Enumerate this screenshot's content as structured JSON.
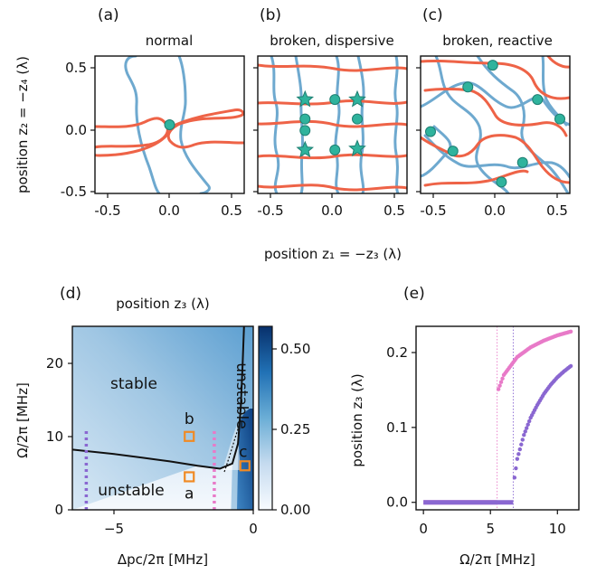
{
  "chart_data": [
    {
      "panel": "(a)",
      "type": "line",
      "title": "normal",
      "xticks": [
        "-0.5",
        "0.0",
        "0.5"
      ],
      "yticks": [
        "0.5",
        "0.0",
        "-0.5"
      ],
      "xlim": [
        -0.6,
        0.6
      ],
      "ylim": [
        -0.6,
        0.6
      ],
      "ylabel": "position z₂ = −z₄ (λ)",
      "points": [
        {
          "x": 0.0,
          "y": 0.0
        }
      ]
    },
    {
      "panel": "(b)",
      "type": "line",
      "title": "broken, dispersive",
      "xticks": [
        "-0.5",
        "0.0",
        "0.5"
      ],
      "xlim": [
        -0.6,
        0.6
      ],
      "ylim": [
        -0.6,
        0.6
      ],
      "xlabel": "position z₁ = −z₃ (λ)",
      "star_points": [
        {
          "x": -0.22,
          "y": 0.22
        },
        {
          "x": 0.2,
          "y": 0.22
        },
        {
          "x": -0.22,
          "y": -0.22
        },
        {
          "x": 0.2,
          "y": -0.21
        }
      ],
      "points": [
        {
          "x": 0.02,
          "y": 0.22
        },
        {
          "x": -0.22,
          "y": 0.05
        },
        {
          "x": 0.2,
          "y": 0.05
        },
        {
          "x": -0.22,
          "y": -0.05
        },
        {
          "x": 0.02,
          "y": -0.22
        }
      ]
    },
    {
      "panel": "(c)",
      "type": "line",
      "title": "broken, reactive",
      "xticks": [
        "-0.5",
        "0.0",
        "0.5"
      ],
      "xlim": [
        -0.6,
        0.6
      ],
      "ylim": [
        -0.6,
        0.6
      ],
      "points": [
        {
          "x": -0.02,
          "y": 0.52
        },
        {
          "x": -0.22,
          "y": 0.33
        },
        {
          "x": 0.34,
          "y": 0.22
        },
        {
          "x": 0.52,
          "y": 0.05
        },
        {
          "x": -0.52,
          "y": -0.06
        },
        {
          "x": -0.34,
          "y": -0.23
        },
        {
          "x": 0.22,
          "y": -0.33
        },
        {
          "x": 0.05,
          "y": -0.5
        }
      ]
    },
    {
      "panel": "(d)",
      "type": "heatmap",
      "title": "position z₃ (λ)",
      "xlabel": "Δpc/2π [MHz]",
      "ylabel": "Ω/2π [MHz]",
      "xticks": [
        "−5",
        "0"
      ],
      "yticks": [
        "0",
        "10",
        "20"
      ],
      "xlim": [
        -6.5,
        0
      ],
      "ylim": [
        0,
        25
      ],
      "colorbar_ticks": [
        "0.00",
        "0.25",
        "0.50"
      ],
      "colorbar_range": [
        0,
        0.57
      ],
      "region_labels": [
        "stable",
        "unstable",
        "unstable"
      ],
      "markers": [
        {
          "label": "a",
          "x": -2.3,
          "y": 4.5
        },
        {
          "label": "b",
          "x": -2.3,
          "y": 10.0
        },
        {
          "label": "c",
          "x": -0.3,
          "y": 6.0
        }
      ],
      "boundary": [
        {
          "x": -6.5,
          "y": 8.2
        },
        {
          "x": -5.0,
          "y": 7.6
        },
        {
          "x": -4.0,
          "y": 7.1
        },
        {
          "x": -3.0,
          "y": 6.6
        },
        {
          "x": -2.0,
          "y": 6.0
        },
        {
          "x": -1.2,
          "y": 5.6
        },
        {
          "x": -0.75,
          "y": 6.3
        },
        {
          "x": -0.55,
          "y": 9.0
        },
        {
          "x": -0.45,
          "y": 14.0
        },
        {
          "x": -0.38,
          "y": 20.0
        },
        {
          "x": -0.33,
          "y": 25.0
        }
      ],
      "vlines": [
        {
          "x": -6.0,
          "color": "#8a67d1"
        },
        {
          "x": -1.4,
          "color": "#e87ac8"
        }
      ]
    },
    {
      "panel": "(e)",
      "type": "scatter",
      "xlabel": "Ω/2π [MHz]",
      "ylabel": "position z₃ (λ)",
      "xticks": [
        "0",
        "5",
        "10"
      ],
      "yticks": [
        "0.0",
        "0.1",
        "0.2"
      ],
      "xlim": [
        -0.55,
        11.6
      ],
      "ylim": [
        -0.01,
        0.235
      ],
      "vlines": [
        5.5,
        6.7
      ],
      "series": [
        {
          "color": "#e87ac8",
          "zero_until": 5.5,
          "branch": [
            [
              5.6,
              0.151
            ],
            [
              6.0,
              0.17
            ],
            [
              7.0,
              0.194
            ],
            [
              8.0,
              0.207
            ],
            [
              9.0,
              0.216
            ],
            [
              10.0,
              0.223
            ],
            [
              11.0,
              0.228
            ]
          ]
        },
        {
          "color": "#8a67d1",
          "zero_until": 6.7,
          "branch": [
            [
              6.8,
              0.033
            ],
            [
              7.0,
              0.058
            ],
            [
              7.5,
              0.09
            ],
            [
              8.0,
              0.113
            ],
            [
              8.5,
              0.13
            ],
            [
              9.0,
              0.145
            ],
            [
              9.5,
              0.157
            ],
            [
              10.0,
              0.167
            ],
            [
              10.5,
              0.175
            ],
            [
              11.0,
              0.182
            ]
          ]
        }
      ]
    }
  ]
}
